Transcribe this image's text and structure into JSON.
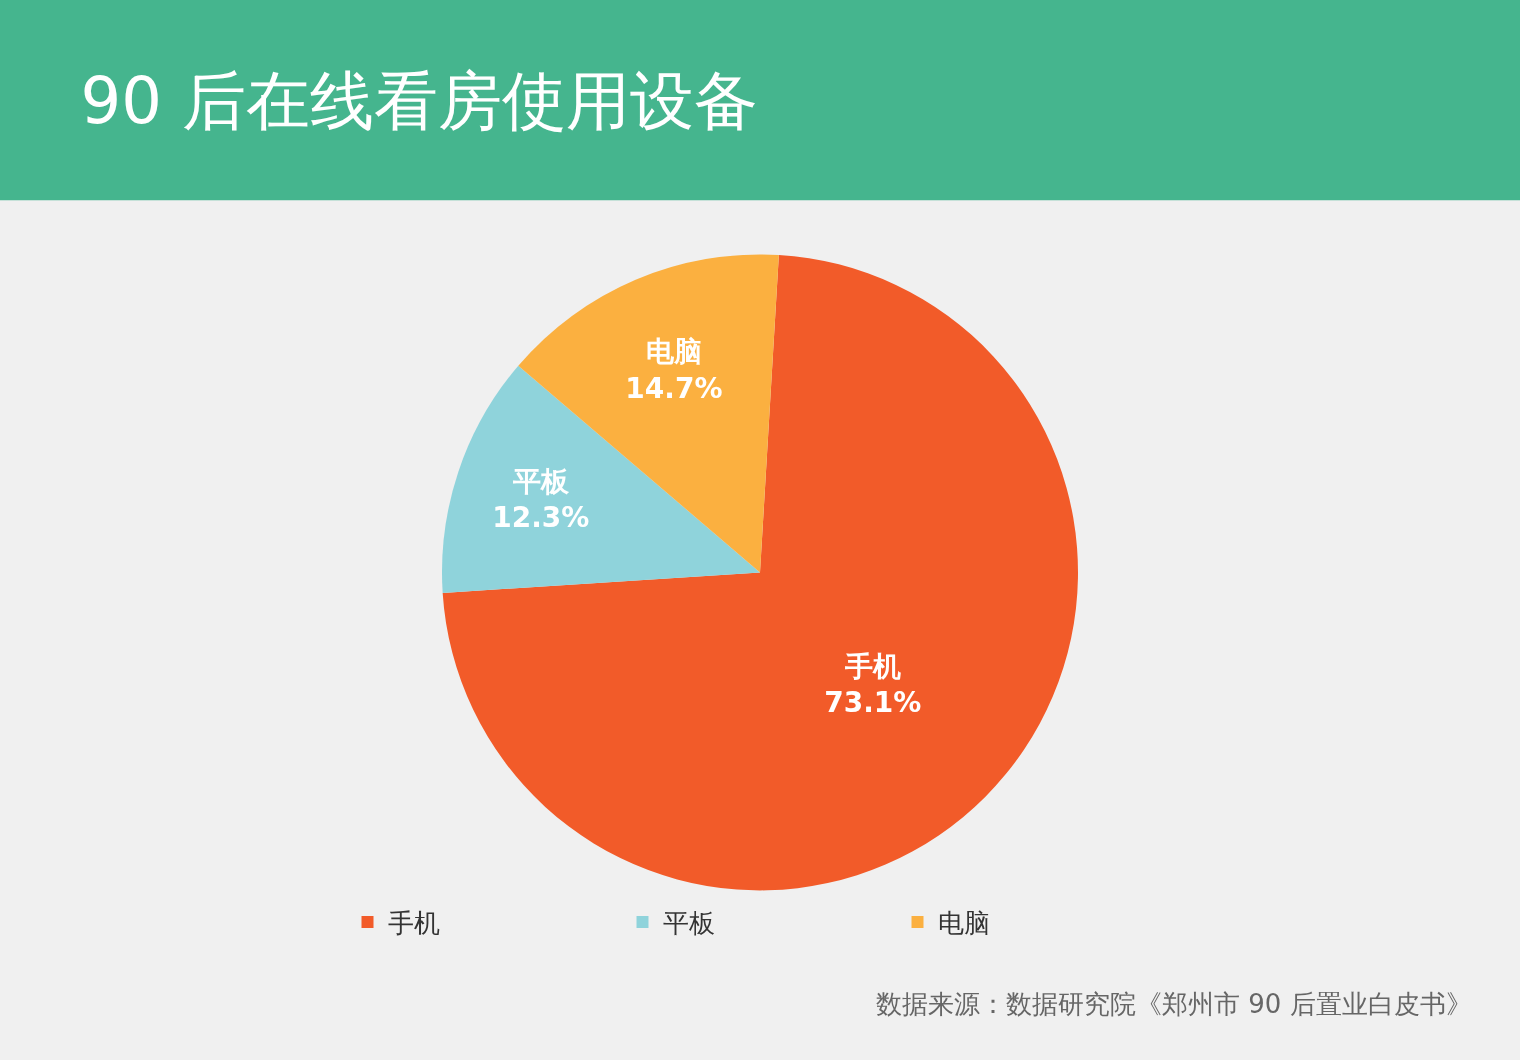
{
  "chart_data": {
    "type": "pie",
    "title": "90 后在线看房使用设备",
    "categories": [
      "手机",
      "平板",
      "电脑"
    ],
    "values": [
      73.1,
      12.3,
      14.7
    ],
    "colors": [
      "#f25b29",
      "#8fd3db",
      "#fbb040"
    ],
    "value_labels": [
      "73.1%",
      "12.3%",
      "14.7%"
    ],
    "legend": "bottom",
    "annotations": [
      "数据来源：数据研究院《郑州市 90 后置业白皮书》"
    ]
  }
}
